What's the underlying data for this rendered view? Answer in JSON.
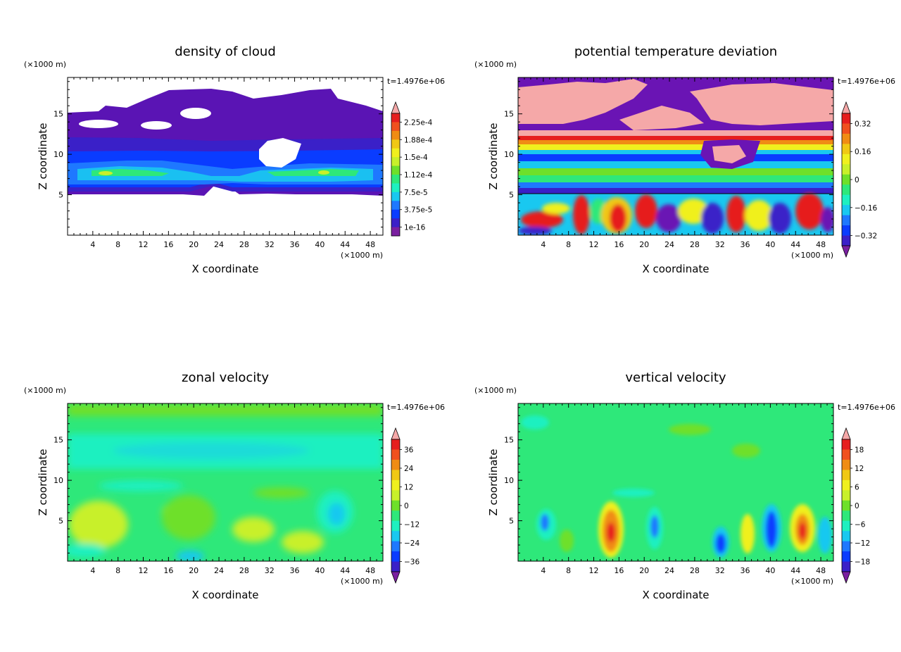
{
  "chart_data": [
    {
      "type": "heatmap",
      "title": "density of cloud",
      "xlabel": "X coordinate",
      "ylabel": "Z coordinate",
      "x_unit": "(×1000 m)",
      "y_unit": "(×1000 m)",
      "time_label": "t=1.4976e+06",
      "xlim": [
        0,
        50
      ],
      "ylim": [
        0,
        19.5
      ],
      "x_ticks": [
        "4",
        "8",
        "12",
        "16",
        "20",
        "24",
        "28",
        "32",
        "36",
        "40",
        "44",
        "48"
      ],
      "y_ticks": [
        "5",
        "10",
        "15"
      ],
      "colorbar_labels": [
        "1e-16",
        "3.75e-5",
        "7.5e-5",
        "1.12e-4",
        "1.5e-4",
        "1.88e-4",
        "2.25e-4"
      ]
    },
    {
      "type": "heatmap",
      "title": "potential temperature deviation",
      "xlabel": "X coordinate",
      "ylabel": "Z coordinate",
      "x_unit": "(×1000 m)",
      "y_unit": "(×1000 m)",
      "time_label": "t=1.4976e+06",
      "xlim": [
        0,
        50
      ],
      "ylim": [
        0,
        19.5
      ],
      "x_ticks": [
        "4",
        "8",
        "12",
        "16",
        "20",
        "24",
        "28",
        "32",
        "36",
        "40",
        "44",
        "48"
      ],
      "y_ticks": [
        "5",
        "10",
        "15"
      ],
      "colorbar_labels": [
        "−0.32",
        "−0.16",
        "0",
        "0.16",
        "0.32"
      ]
    },
    {
      "type": "heatmap",
      "title": "zonal velocity",
      "xlabel": "X coordinate",
      "ylabel": "Z coordinate",
      "x_unit": "(×1000 m)",
      "y_unit": "(×1000 m)",
      "time_label": "t=1.4976e+06",
      "xlim": [
        0,
        50
      ],
      "ylim": [
        0,
        19.5
      ],
      "x_ticks": [
        "4",
        "8",
        "12",
        "16",
        "20",
        "24",
        "28",
        "32",
        "36",
        "40",
        "44",
        "48"
      ],
      "y_ticks": [
        "5",
        "10",
        "15"
      ],
      "colorbar_labels": [
        "−36",
        "−24",
        "−12",
        "0",
        "12",
        "24",
        "36"
      ]
    },
    {
      "type": "heatmap",
      "title": "vertical velocity",
      "xlabel": "X coordinate",
      "ylabel": "Z coordinate",
      "x_unit": "(×1000 m)",
      "y_unit": "(×1000 m)",
      "time_label": "t=1.4976e+06",
      "xlim": [
        0,
        50
      ],
      "ylim": [
        0,
        19.5
      ],
      "x_ticks": [
        "4",
        "8",
        "12",
        "16",
        "20",
        "24",
        "28",
        "32",
        "36",
        "40",
        "44",
        "48"
      ],
      "y_ticks": [
        "5",
        "10",
        "15"
      ],
      "colorbar_labels": [
        "−18",
        "−12",
        "−6",
        "0",
        "6",
        "12",
        "18"
      ]
    }
  ],
  "colors": {
    "colormap": [
      "#7a1fa0",
      "#3a20c8",
      "#0a3cff",
      "#1e78ff",
      "#19c8f0",
      "#1ef0c0",
      "#2ee87a",
      "#6ee02a",
      "#c8f02a",
      "#f0f01e",
      "#f0c814",
      "#f08c14",
      "#f0501e",
      "#e61e1e",
      "#f5a8a8"
    ],
    "cloud_fill": "#5a14b4",
    "background": "#ffffff"
  }
}
